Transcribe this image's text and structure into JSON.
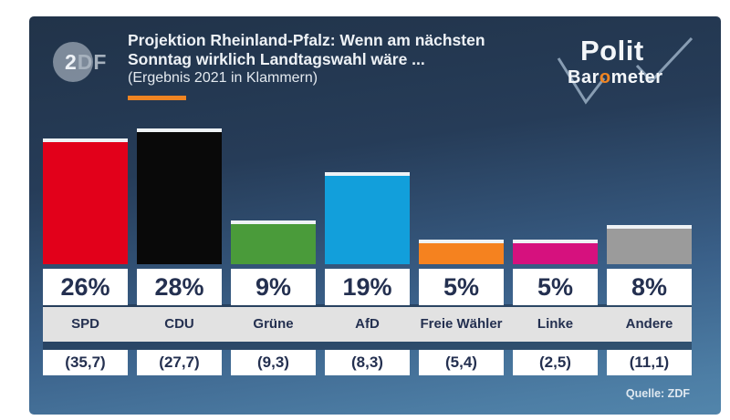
{
  "header": {
    "title_line1": "Projektion Rheinland-Pfalz: Wenn am nächsten",
    "title_line2": "Sonntag wirklich Landtagswahl wäre ...",
    "subtitle": "(Ergebnis 2021 in Klammern)",
    "zdf_logo": {
      "digit": "2",
      "letters": "DF"
    },
    "politbarometer": {
      "line1": "Polit",
      "line2_pre": "Bar",
      "line2_o": "o",
      "line2_post": "meter"
    }
  },
  "chart_data": {
    "type": "bar",
    "title": "Projektion Rheinland-Pfalz: Wenn am nächsten Sonntag wirklich Landtagswahl wäre ...",
    "subtitle": "(Ergebnis 2021 in Klammern)",
    "categories": [
      "SPD",
      "CDU",
      "Grüne",
      "AfD",
      "Freie Wähler",
      "Linke",
      "Andere"
    ],
    "values": [
      26,
      28,
      9,
      19,
      5,
      5,
      8
    ],
    "value_labels": [
      "26%",
      "28%",
      "9%",
      "19%",
      "5%",
      "5%",
      "8%"
    ],
    "previous_2021": [
      35.7,
      27.7,
      9.3,
      8.3,
      5.4,
      2.5,
      11.1
    ],
    "previous_labels": [
      "(35,7)",
      "(27,7)",
      "(9,3)",
      "(8,3)",
      "(5,4)",
      "(2,5)",
      "(11,1)"
    ],
    "colors": [
      "#e2001a",
      "#090909",
      "#4a9b3a",
      "#129fdb",
      "#f5821f",
      "#d6117e",
      "#9b9b9b"
    ],
    "unit": "%",
    "legend": "none",
    "grid": false
  },
  "footer": {
    "source": "Quelle: ZDF"
  },
  "accent_orange": "#ef8422",
  "checkmark_color": "#93a9be"
}
